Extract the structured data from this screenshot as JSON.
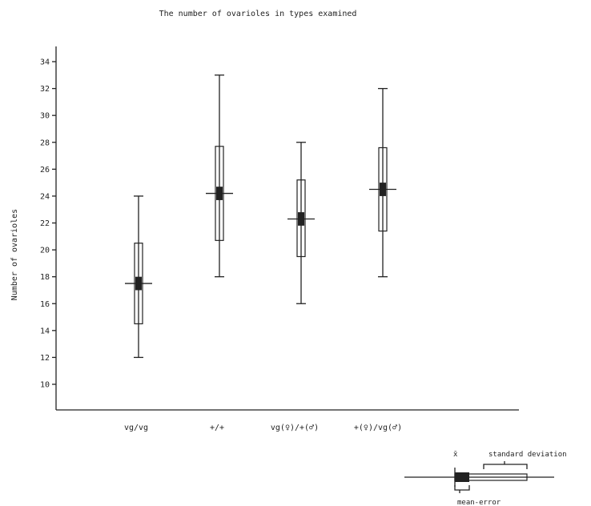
{
  "chart_data": {
    "type": "box",
    "title": "The number of ovarioles in types examined",
    "xlabel": "",
    "ylabel": "Number of ovarioles",
    "ylim": [
      8,
      35
    ],
    "yticks": [
      10,
      12,
      14,
      16,
      18,
      20,
      22,
      24,
      26,
      28,
      30,
      32,
      34
    ],
    "categories": [
      "vg/vg",
      "+/+",
      "vg(♀)/+(♂)",
      "+(♀)/vg(♂)"
    ],
    "groups": [
      {
        "category": "vg/vg",
        "min": 12,
        "max": 24,
        "mean": 17.5,
        "sd_low": 14.5,
        "sd_high": 20.5,
        "err_low": 17.0,
        "err_high": 18.0
      },
      {
        "category": "+/+",
        "min": 18,
        "max": 33,
        "mean": 24.2,
        "sd_low": 20.7,
        "sd_high": 27.7,
        "err_low": 23.7,
        "err_high": 24.7
      },
      {
        "category": "vg(♀)/+(♂)",
        "min": 16,
        "max": 28,
        "mean": 22.3,
        "sd_low": 19.5,
        "sd_high": 25.2,
        "err_low": 21.8,
        "err_high": 22.8
      },
      {
        "category": "+(♀)/vg(♂)",
        "min": 18,
        "max": 32,
        "mean": 24.5,
        "sd_low": 21.4,
        "sd_high": 27.6,
        "err_low": 24.0,
        "err_high": 25.0
      }
    ],
    "grid": false
  },
  "legend": {
    "mean_symbol": "x̄",
    "sd_label": "standard deviation",
    "merr_label": "mean-error"
  }
}
